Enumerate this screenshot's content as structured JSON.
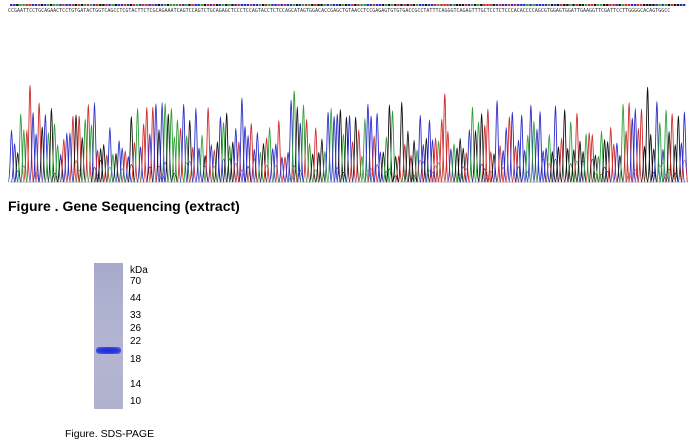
{
  "sequencing": {
    "caption": "Figure . Gene Sequencing (extract)",
    "sequence_text": "CCGAATTCCTGCAGAACTCCTGTGATACTGGTCAGCCTCGTACTTCTCGCAGAAATCAGTCCAGTCTGCAGAGCTCCCTCCAGTACCTCTCCAGCATAGTGGACACCGAGCTGTAACCTCCGAGAGTGTGTGACCGCCTATTTCAGGGTCAGAGTTTGCTCCTCTCCCACACCCCAGCGTGGAGTGGATTGAAGGTTCGATTCCTTGGGGCACAGTGGCC",
    "trace_colors": {
      "A": "#2e9e3a",
      "C": "#2c2cc8",
      "G": "#111111",
      "T": "#d02a2a"
    }
  },
  "sds_page": {
    "caption": "Figure. SDS-PAGE",
    "unit_label": "kDa",
    "ladder": [
      "70",
      "44",
      "33",
      "26",
      "22",
      "18",
      "14",
      "10"
    ],
    "band_kda": 20,
    "lane_color": "#abaecd",
    "band_color": "#1f33d8"
  }
}
